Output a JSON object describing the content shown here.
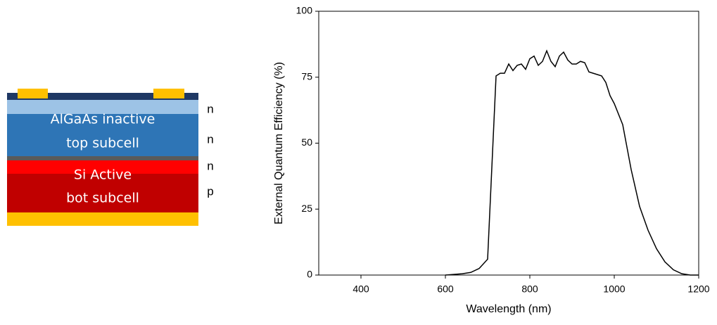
{
  "diagram": {
    "layer_labels": [
      "AlGaAs inactive",
      "top subcell",
      "Si Active",
      "bot subcell"
    ],
    "doping": [
      "n",
      "n",
      "n",
      "p"
    ]
  },
  "chart_data": {
    "type": "line",
    "x_label": "Wavelength (nm)",
    "y_label": "External Quantum Efficiency (%)",
    "x": [
      600,
      640,
      660,
      680,
      700,
      720,
      730,
      740,
      750,
      760,
      770,
      780,
      790,
      800,
      810,
      820,
      830,
      840,
      850,
      860,
      870,
      880,
      890,
      900,
      910,
      920,
      930,
      940,
      950,
      960,
      970,
      980,
      990,
      1000,
      1020,
      1040,
      1060,
      1080,
      1100,
      1120,
      1140,
      1160,
      1180,
      1200
    ],
    "series": [
      {
        "color": "#000000",
        "values": [
          0,
          0.5,
          1,
          2.5,
          6,
          75.5,
          76.5,
          76.5,
          80,
          77.5,
          79.5,
          80,
          78,
          82,
          83,
          79.5,
          81,
          85,
          81,
          79,
          83,
          84.5,
          81.5,
          80,
          80,
          81,
          80.5,
          77,
          76.5,
          76,
          75.5,
          73,
          68,
          65,
          57,
          40,
          26,
          17,
          10,
          5,
          2,
          0.5,
          0,
          0
        ]
      }
    ],
    "xlim": [
      300,
      1200
    ],
    "ylim": [
      0,
      100
    ],
    "xticks": [
      400,
      600,
      800,
      1000,
      1200
    ],
    "yticks": [
      0,
      25,
      50,
      75,
      100
    ]
  }
}
